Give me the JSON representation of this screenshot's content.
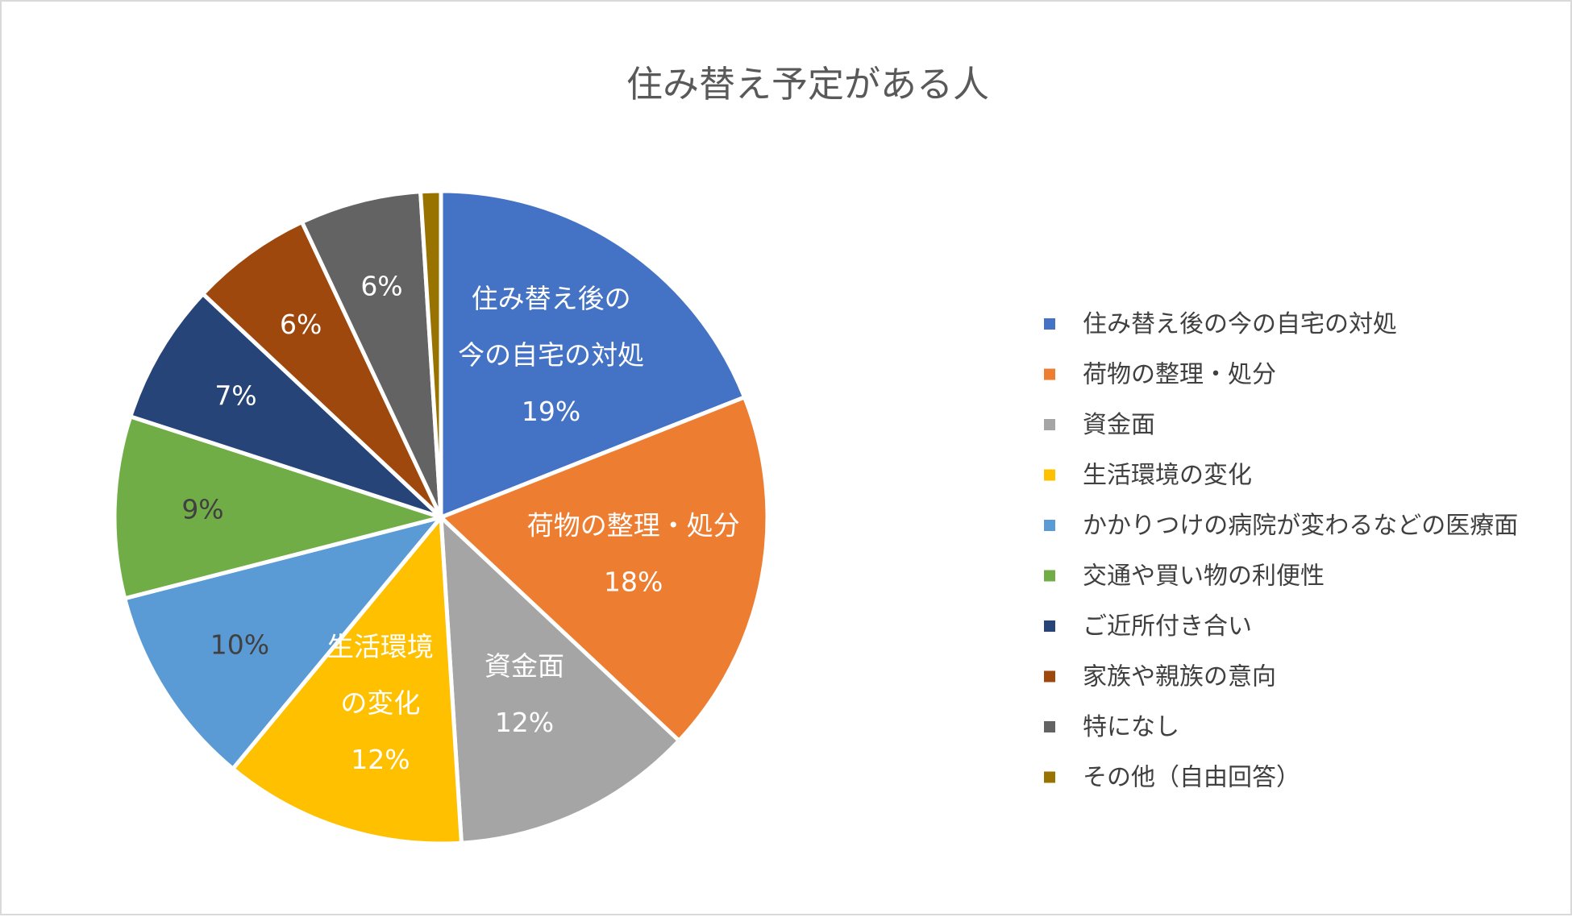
{
  "chart_data": {
    "type": "pie",
    "title": "住み替え予定がある人",
    "legend_position": "right",
    "slices": [
      {
        "label": "住み替え後の今の自宅の対処",
        "value": 19,
        "percent_label": "19%",
        "color": "#4472C4",
        "inside_label_lines": [
          "住み替え後の",
          "今の自宅の対処"
        ],
        "label_color": "#ffffff"
      },
      {
        "label": "荷物の整理・処分",
        "value": 18,
        "percent_label": "18%",
        "color": "#ED7D31",
        "inside_label_lines": [
          "荷物の整理・処分"
        ],
        "label_color": "#ffffff"
      },
      {
        "label": "資金面",
        "value": 12,
        "percent_label": "12%",
        "color": "#A5A5A5",
        "inside_label_lines": [
          "資金面"
        ],
        "label_color": "#ffffff"
      },
      {
        "label": "生活環境の変化",
        "value": 12,
        "percent_label": "12%",
        "color": "#FFC000",
        "inside_label_lines": [
          "生活環境",
          "の変化"
        ],
        "label_color": "#ffffff"
      },
      {
        "label": "かかりつけの病院が変わるなどの医療面",
        "value": 10,
        "percent_label": "10%",
        "color": "#5B9BD5",
        "inside_label_lines": [],
        "label_color": "#404040"
      },
      {
        "label": "交通や買い物の利便性",
        "value": 9,
        "percent_label": "9%",
        "color": "#70AD47",
        "inside_label_lines": [],
        "label_color": "#404040"
      },
      {
        "label": "ご近所付き合い",
        "value": 7,
        "percent_label": "7%",
        "color": "#264478",
        "inside_label_lines": [],
        "label_color": "#ffffff"
      },
      {
        "label": "家族や親族の意向",
        "value": 6,
        "percent_label": "6%",
        "color": "#9E480E",
        "inside_label_lines": [],
        "label_color": "#ffffff"
      },
      {
        "label": "特になし",
        "value": 6,
        "percent_label": "6%",
        "color": "#636363",
        "inside_label_lines": [],
        "label_color": "#ffffff"
      },
      {
        "label": "その他（自由回答）",
        "value": 1,
        "percent_label": "",
        "color": "#997300",
        "inside_label_lines": [],
        "label_color": "#ffffff"
      }
    ]
  }
}
